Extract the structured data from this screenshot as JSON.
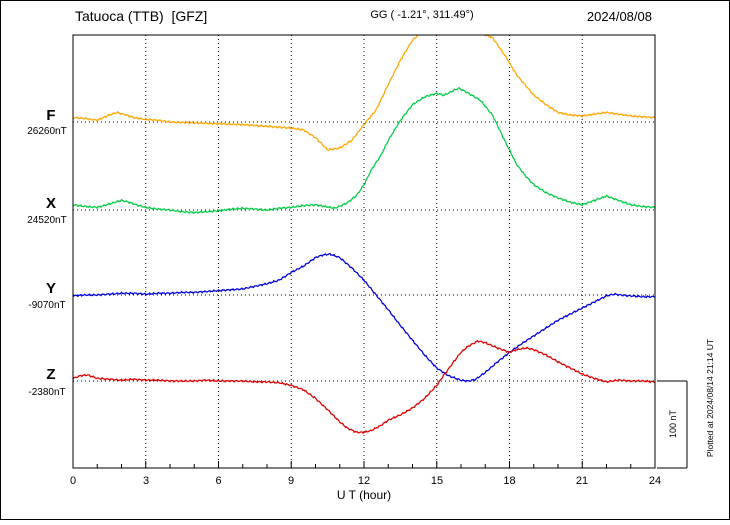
{
  "header": {
    "station": "Tatuoca (TTB)  [GFZ]",
    "coords": "GG ( -1.21°, 311.49°)",
    "date": "2024/08/08"
  },
  "footer": {
    "plotted_at": "Plotted at 2024/08/14 21:14 UT"
  },
  "chart_data": {
    "type": "line",
    "title": "Tatuoca (TTB) [GFZ] magnetogram 2024/08/08",
    "xlabel": "U T (hour)",
    "x_range": [
      0,
      24
    ],
    "x_ticks": [
      0,
      3,
      6,
      9,
      12,
      15,
      18,
      21,
      24
    ],
    "y_unit": "nT",
    "y_values_are": "offset in nT from each component baseline",
    "scale_bar_label": "100 nT",
    "scale_bar_nT": 100,
    "grid": "dotted vertical lines every 3 h, dotted horizontal baseline per component",
    "series": [
      {
        "name": "F",
        "baseline_nT": 26260,
        "baseline_label": "26260nT",
        "color": "#FFA500",
        "points": [
          [
            0,
            5
          ],
          [
            0.5,
            4
          ],
          [
            1,
            2
          ],
          [
            1.5,
            8
          ],
          [
            1.8,
            11
          ],
          [
            2.2,
            8
          ],
          [
            2.5,
            5
          ],
          [
            3,
            3
          ],
          [
            3.5,
            2
          ],
          [
            4,
            0
          ],
          [
            5,
            -1
          ],
          [
            6,
            -2
          ],
          [
            7,
            -3
          ],
          [
            8,
            -5
          ],
          [
            9,
            -7
          ],
          [
            9.5,
            -9
          ],
          [
            10,
            -18
          ],
          [
            10.5,
            -32
          ],
          [
            11,
            -30
          ],
          [
            11.5,
            -21
          ],
          [
            12,
            -3
          ],
          [
            12.5,
            14
          ],
          [
            13,
            43
          ],
          [
            13.5,
            71
          ],
          [
            14,
            94
          ],
          [
            14.5,
            107
          ],
          [
            15,
            113
          ],
          [
            15.5,
            115
          ],
          [
            16,
            113
          ],
          [
            16.5,
            107
          ],
          [
            17,
            100
          ],
          [
            17.3,
            97
          ],
          [
            17.8,
            77
          ],
          [
            18.3,
            54
          ],
          [
            19,
            31
          ],
          [
            19.5,
            20
          ],
          [
            20,
            11
          ],
          [
            20.5,
            8
          ],
          [
            21,
            7
          ],
          [
            21.5,
            9
          ],
          [
            22,
            11
          ],
          [
            22.5,
            9
          ],
          [
            23,
            7
          ],
          [
            23.5,
            6
          ],
          [
            24,
            5
          ]
        ]
      },
      {
        "name": "X",
        "baseline_nT": 24520,
        "baseline_label": "24520nT",
        "color": "#00CC44",
        "points": [
          [
            0,
            6
          ],
          [
            0.5,
            4
          ],
          [
            1,
            3
          ],
          [
            1.5,
            7
          ],
          [
            2,
            11
          ],
          [
            2.3,
            9
          ],
          [
            2.6,
            6
          ],
          [
            3,
            3
          ],
          [
            3.5,
            1
          ],
          [
            4,
            0
          ],
          [
            4.5,
            -2
          ],
          [
            5,
            -3
          ],
          [
            5.5,
            -2
          ],
          [
            6,
            -1
          ],
          [
            6.5,
            1
          ],
          [
            7,
            2
          ],
          [
            7.5,
            1
          ],
          [
            8,
            0
          ],
          [
            8.5,
            2
          ],
          [
            9,
            3
          ],
          [
            9.5,
            5
          ],
          [
            10,
            6
          ],
          [
            10.4,
            4
          ],
          [
            10.8,
            2
          ],
          [
            11.3,
            8
          ],
          [
            11.7,
            17
          ],
          [
            12,
            29
          ],
          [
            12.3,
            46
          ],
          [
            12.7,
            63
          ],
          [
            13,
            80
          ],
          [
            13.5,
            103
          ],
          [
            14,
            121
          ],
          [
            14.5,
            130
          ],
          [
            15,
            134
          ],
          [
            15.3,
            132
          ],
          [
            15.6,
            136
          ],
          [
            15.9,
            140
          ],
          [
            16.2,
            136
          ],
          [
            16.5,
            131
          ],
          [
            16.8,
            126
          ],
          [
            17.3,
            109
          ],
          [
            17.8,
            80
          ],
          [
            18.3,
            52
          ],
          [
            18.7,
            38
          ],
          [
            19,
            29
          ],
          [
            19.5,
            20
          ],
          [
            20,
            14
          ],
          [
            20.5,
            9
          ],
          [
            21,
            6
          ],
          [
            21.5,
            11
          ],
          [
            22,
            16
          ],
          [
            22.5,
            11
          ],
          [
            23,
            6
          ],
          [
            23.5,
            4
          ],
          [
            24,
            3
          ]
        ]
      },
      {
        "name": "Y",
        "baseline_nT": -9070,
        "baseline_label": "-9070nT",
        "color": "#0000DD",
        "points": [
          [
            0,
            -1
          ],
          [
            0.5,
            0
          ],
          [
            1,
            0
          ],
          [
            1.5,
            1
          ],
          [
            2,
            2
          ],
          [
            2.5,
            2
          ],
          [
            3,
            1
          ],
          [
            3.5,
            2
          ],
          [
            4,
            2
          ],
          [
            4.5,
            3
          ],
          [
            5,
            3
          ],
          [
            5.5,
            4
          ],
          [
            6,
            5
          ],
          [
            6.5,
            6
          ],
          [
            7,
            7
          ],
          [
            7.5,
            10
          ],
          [
            8,
            13
          ],
          [
            8.5,
            17
          ],
          [
            9,
            26
          ],
          [
            9.5,
            33
          ],
          [
            10,
            43
          ],
          [
            10.3,
            46
          ],
          [
            10.6,
            47
          ],
          [
            11,
            43
          ],
          [
            11.5,
            31
          ],
          [
            12,
            17
          ],
          [
            12.5,
            0
          ],
          [
            13,
            -17
          ],
          [
            13.5,
            -35
          ],
          [
            14,
            -52
          ],
          [
            14.5,
            -69
          ],
          [
            15,
            -84
          ],
          [
            15.5,
            -93
          ],
          [
            16,
            -98
          ],
          [
            16.3,
            -99
          ],
          [
            16.6,
            -97
          ],
          [
            17,
            -89
          ],
          [
            17.5,
            -77
          ],
          [
            18,
            -66
          ],
          [
            18.5,
            -56
          ],
          [
            19,
            -47
          ],
          [
            19.5,
            -38
          ],
          [
            20,
            -29
          ],
          [
            20.5,
            -22
          ],
          [
            21,
            -15
          ],
          [
            21.5,
            -8
          ],
          [
            22,
            -1
          ],
          [
            22.3,
            1
          ],
          [
            22.6,
            0
          ],
          [
            23,
            -1
          ],
          [
            23.5,
            -2
          ],
          [
            24,
            -2
          ]
        ]
      },
      {
        "name": "Z",
        "baseline_nT": -2380,
        "baseline_label": "-2380nT",
        "color": "#DD0000",
        "points": [
          [
            0,
            3
          ],
          [
            0.3,
            6
          ],
          [
            0.6,
            7
          ],
          [
            1,
            3
          ],
          [
            1.5,
            2
          ],
          [
            2,
            1
          ],
          [
            2.5,
            2
          ],
          [
            3,
            1
          ],
          [
            3.5,
            1
          ],
          [
            4,
            0
          ],
          [
            4.5,
            0
          ],
          [
            5,
            0
          ],
          [
            5.5,
            1
          ],
          [
            6,
            0
          ],
          [
            6.5,
            0
          ],
          [
            7,
            0
          ],
          [
            7.5,
            -1
          ],
          [
            8,
            -1
          ],
          [
            8.5,
            -2
          ],
          [
            9,
            -5
          ],
          [
            9.5,
            -10
          ],
          [
            10,
            -20
          ],
          [
            10.5,
            -33
          ],
          [
            11,
            -47
          ],
          [
            11.3,
            -54
          ],
          [
            11.7,
            -59
          ],
          [
            12,
            -59
          ],
          [
            12.3,
            -57
          ],
          [
            12.7,
            -51
          ],
          [
            13,
            -45
          ],
          [
            13.5,
            -39
          ],
          [
            14,
            -31
          ],
          [
            14.5,
            -20
          ],
          [
            15,
            -5
          ],
          [
            15.3,
            7
          ],
          [
            15.7,
            22
          ],
          [
            16,
            33
          ],
          [
            16.3,
            40
          ],
          [
            16.7,
            46
          ],
          [
            17,
            44
          ],
          [
            17.5,
            38
          ],
          [
            18,
            33
          ],
          [
            18.3,
            36
          ],
          [
            18.7,
            38
          ],
          [
            19,
            36
          ],
          [
            19.5,
            30
          ],
          [
            20,
            22
          ],
          [
            20.5,
            15
          ],
          [
            21,
            8
          ],
          [
            21.5,
            3
          ],
          [
            22,
            -1
          ],
          [
            22.5,
            1
          ],
          [
            23,
            0
          ],
          [
            23.5,
            0
          ],
          [
            24,
            -1
          ]
        ]
      }
    ]
  }
}
